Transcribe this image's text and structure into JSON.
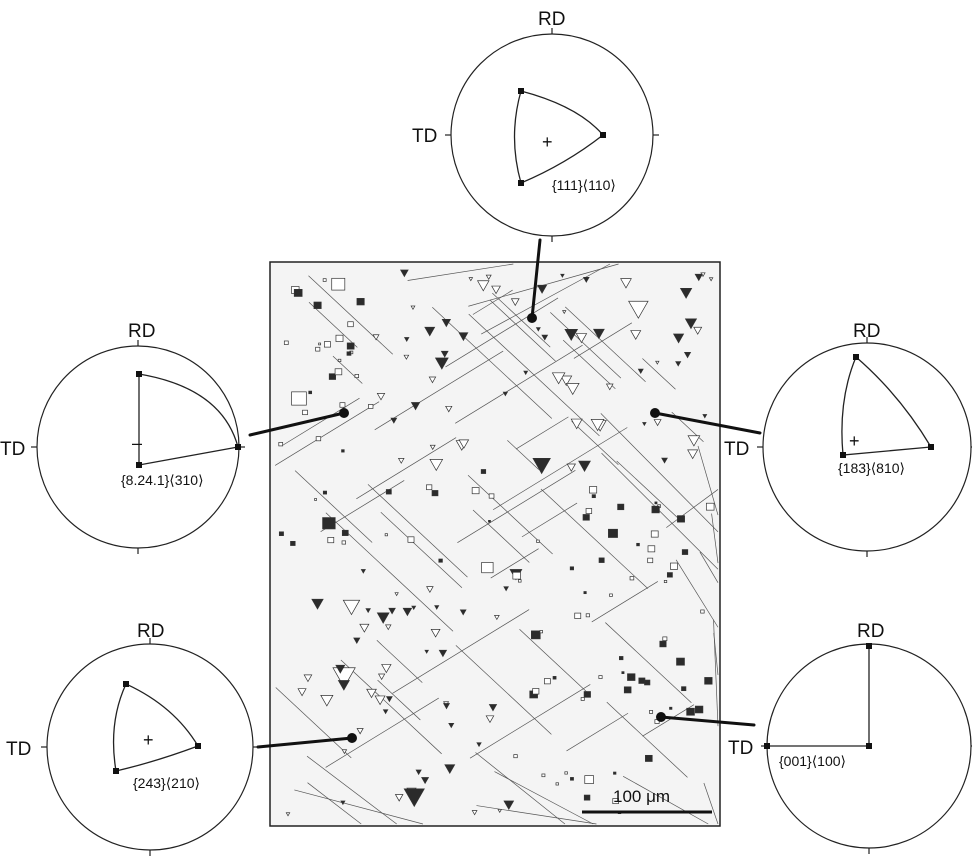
{
  "axis_labels": {
    "rd": "RD",
    "td": "TD"
  },
  "pole_figures": [
    {
      "id": "top",
      "label": "{111}⟨110⟩",
      "center_mark": "+"
    },
    {
      "id": "left-mid",
      "label": "{8.24.1}⟨310⟩",
      "center_mark": "–"
    },
    {
      "id": "right-mid",
      "label": "{183}⟨810⟩",
      "center_mark": "+"
    },
    {
      "id": "left-bottom",
      "label": "{243}⟨210⟩",
      "center_mark": "+"
    },
    {
      "id": "right-bottom",
      "label": "{001}⟨100⟩",
      "center_mark": ""
    }
  ],
  "micrograph": {
    "scale_bar": "100 μm"
  },
  "colors": {
    "ink": "#111111",
    "micrograph_bg": "#f4f4f4",
    "pit": "#2b2b2b"
  }
}
